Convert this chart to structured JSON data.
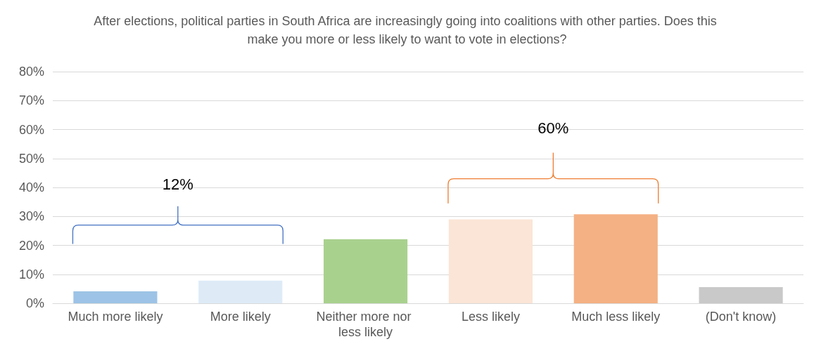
{
  "chart_data": {
    "type": "bar",
    "title": "After elections, political parties in South Africa are increasingly going into coalitions with other parties. Does this make you more or less likely to want to vote in elections?",
    "categories": [
      "Much more likely",
      "More likely",
      "Neither more nor less likely",
      "Less likely",
      "Much less likely",
      "(Don't know)"
    ],
    "values": [
      4.1,
      7.8,
      22.1,
      29.0,
      30.7,
      5.6
    ],
    "colors": [
      "#9dc3e6",
      "#deebf7",
      "#a9d18e",
      "#fbe5d6",
      "#f4b183",
      "#c9c9c9"
    ],
    "ylim": [
      0,
      80
    ],
    "yticks": [
      {
        "value": 0,
        "label": "0%"
      },
      {
        "value": 10,
        "label": "10%"
      },
      {
        "value": 20,
        "label": "20%"
      },
      {
        "value": 30,
        "label": "30%"
      },
      {
        "value": 40,
        "label": "40%"
      },
      {
        "value": 50,
        "label": "50%"
      },
      {
        "value": 60,
        "label": "60%"
      },
      {
        "value": 70,
        "label": "70%"
      },
      {
        "value": 80,
        "label": "80%"
      }
    ],
    "annotations": [
      "12%",
      "60%"
    ],
    "grid": "y"
  }
}
